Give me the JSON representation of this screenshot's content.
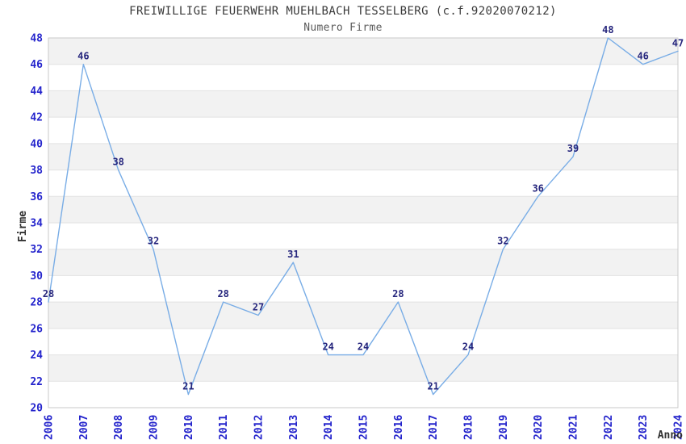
{
  "header": {
    "title": "FREIWILLIGE FEUERWEHR MUEHLBACH TESSELBERG (c.f.92020070212)",
    "subtitle": "Numero Firme"
  },
  "chart_data": {
    "type": "line",
    "title": "FREIWILLIGE FEUERWEHR MUEHLBACH TESSELBERG (c.f.92020070212)",
    "subtitle": "Numero Firme",
    "xlabel": "Anno",
    "ylabel": "Firme",
    "x": [
      2006,
      2007,
      2008,
      2009,
      2010,
      2011,
      2012,
      2013,
      2014,
      2015,
      2016,
      2017,
      2018,
      2019,
      2020,
      2021,
      2022,
      2023,
      2024
    ],
    "values": [
      28,
      46,
      38,
      32,
      21,
      28,
      27,
      31,
      24,
      24,
      28,
      21,
      24,
      32,
      36,
      39,
      48,
      46,
      47
    ],
    "point_labels": [
      "28",
      "46",
      "38",
      "32",
      "21",
      "28",
      "27",
      "31",
      "24",
      "24",
      "28",
      "21",
      "24",
      "32",
      "36",
      "39",
      "48",
      "46",
      "47"
    ],
    "ylim": [
      20,
      48
    ],
    "ytick_step": 2,
    "yticks": [
      20,
      22,
      24,
      26,
      28,
      30,
      32,
      34,
      36,
      38,
      40,
      42,
      44,
      46,
      48
    ],
    "grid": "alternating horizontal bands every 2 units, gray band at top (46-48)",
    "legend": "none",
    "x_tick_rotation_deg": 90,
    "colors": {
      "line": "#79ade6",
      "tick_label": "#2424cc",
      "point_label": "#26267d",
      "band_gray": "#f2f2f2",
      "band_white": "#ffffff",
      "band_edge": "#e2e2e2",
      "plot_border": "#c9c9c9",
      "title": "#3a3a3a",
      "subtitle": "#5a5a5a",
      "axis_title": "#303030"
    }
  }
}
